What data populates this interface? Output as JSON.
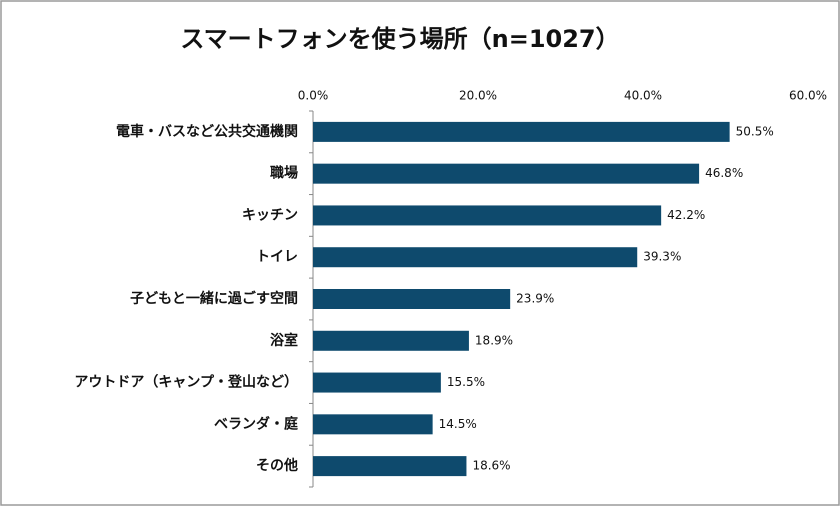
{
  "chart_data": {
    "type": "bar",
    "orientation": "horizontal",
    "title": "スマートフォンを使う場所（n=1027）",
    "categories": [
      "電車・バスなど公共交通機関",
      "職場",
      "キッチン",
      "トイレ",
      "子どもと一緒に過ごす空間",
      "浴室",
      "アウトドア（キャンプ・登山など）",
      "ベランダ・庭",
      "その他"
    ],
    "values": [
      50.5,
      46.8,
      42.2,
      39.3,
      23.9,
      18.9,
      15.5,
      14.5,
      18.6
    ],
    "value_labels": [
      "50.5%",
      "46.8%",
      "42.2%",
      "39.3%",
      "23.9%",
      "18.9%",
      "15.5%",
      "14.5%",
      "18.6%"
    ],
    "color": "#0e4a6d",
    "xlim": [
      0,
      60
    ],
    "xticks": [
      {
        "value": 0,
        "label": "0.0%"
      },
      {
        "value": 20,
        "label": "20.0%"
      },
      {
        "value": 40,
        "label": "40.0%"
      },
      {
        "value": 60,
        "label": "60.0%"
      }
    ],
    "grid": false
  }
}
